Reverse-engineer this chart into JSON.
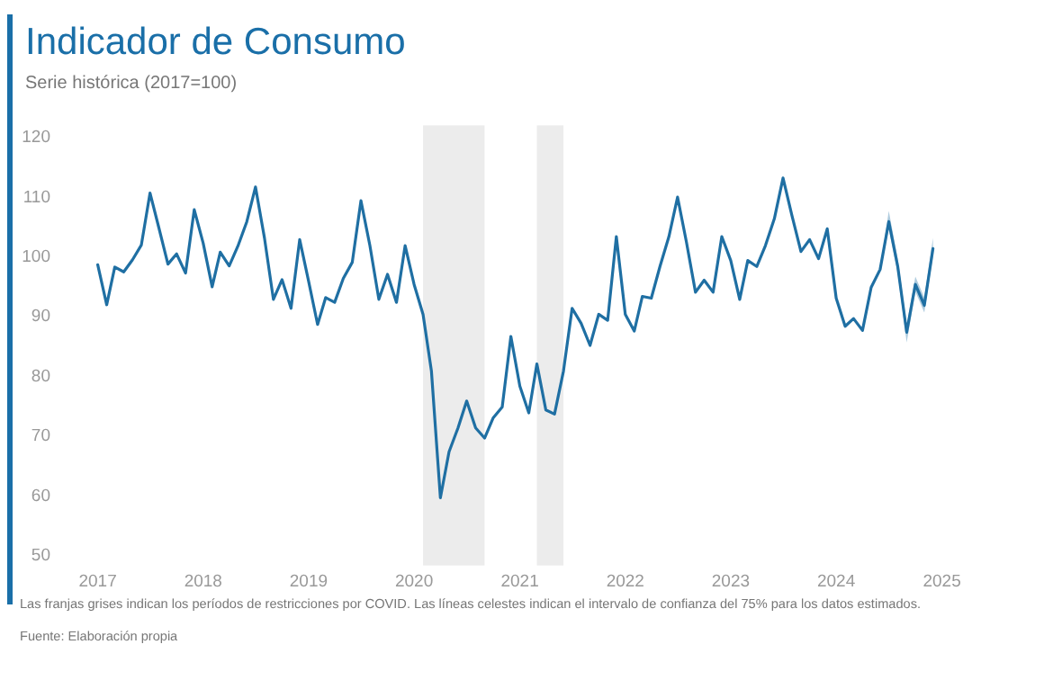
{
  "chart_data": {
    "type": "line",
    "title": "Indicador de Consumo",
    "subtitle": "Serie histórica (2017=100)",
    "annotations": [
      "Las franjas grises indican los períodos de restricciones por COVID. Las líneas celestes indican el intervalo de confianza del 75% para los datos estimados.",
      "Fuente: Elaboración propia"
    ],
    "x": [
      "2017-01",
      "2017-02",
      "2017-03",
      "2017-04",
      "2017-05",
      "2017-06",
      "2017-07",
      "2017-08",
      "2017-09",
      "2017-10",
      "2017-11",
      "2017-12",
      "2018-01",
      "2018-02",
      "2018-03",
      "2018-04",
      "2018-05",
      "2018-06",
      "2018-07",
      "2018-08",
      "2018-09",
      "2018-10",
      "2018-11",
      "2018-12",
      "2019-01",
      "2019-02",
      "2019-03",
      "2019-04",
      "2019-05",
      "2019-06",
      "2019-07",
      "2019-08",
      "2019-09",
      "2019-10",
      "2019-11",
      "2019-12",
      "2020-01",
      "2020-02",
      "2020-03",
      "2020-04",
      "2020-05",
      "2020-06",
      "2020-07",
      "2020-08",
      "2020-09",
      "2020-10",
      "2020-11",
      "2020-12",
      "2021-01",
      "2021-02",
      "2021-03",
      "2021-04",
      "2021-05",
      "2021-06",
      "2021-07",
      "2021-08",
      "2021-09",
      "2021-10",
      "2021-11",
      "2021-12",
      "2022-01",
      "2022-02",
      "2022-03",
      "2022-04",
      "2022-05",
      "2022-06",
      "2022-07",
      "2022-08",
      "2022-09",
      "2022-10",
      "2022-11",
      "2022-12",
      "2023-01",
      "2023-02",
      "2023-03",
      "2023-04",
      "2023-05",
      "2023-06",
      "2023-07",
      "2023-08",
      "2023-09",
      "2023-10",
      "2023-11",
      "2023-12",
      "2024-01",
      "2024-02",
      "2024-03",
      "2024-04",
      "2024-05",
      "2024-06",
      "2024-07",
      "2024-08",
      "2024-09",
      "2024-10",
      "2024-11",
      "2024-12"
    ],
    "series": [
      {
        "color": "#1f6fa3",
        "values": [
          98.5,
          91.8,
          98.1,
          97.3,
          99.3,
          101.8,
          110.5,
          104.6,
          98.6,
          100.3,
          97.1,
          107.7,
          102.1,
          94.8,
          100.6,
          98.3,
          101.6,
          105.7,
          111.5,
          103,
          92.7,
          96,
          91.2,
          102.7,
          95.7,
          88.5,
          93,
          92.2,
          96.2,
          98.9,
          109.2,
          101.7,
          92.7,
          96.9,
          92.2,
          101.7,
          95.2,
          90.2,
          80.7,
          59.5,
          67.2,
          71.2,
          75.7,
          71.2,
          69.5,
          72.9,
          74.7,
          86.5,
          78.2,
          73.7,
          81.9,
          74.2,
          73.5,
          80.7,
          91.2,
          88.7,
          85,
          90.2,
          89.2,
          103.2,
          90.2,
          87.4,
          93.2,
          92.9,
          98.2,
          103.2,
          109.8,
          102.2,
          93.9,
          95.9,
          93.9,
          103.2,
          99.2,
          92.7,
          99.2,
          98.2,
          101.7,
          106.2,
          113,
          106.7,
          100.7,
          102.7,
          99.5,
          104.5,
          92.9,
          88.2,
          89.5,
          87.5,
          94.7,
          97.7,
          105.7,
          98.2,
          87.2,
          95.2,
          91.7,
          101.2
        ],
        "lower": [
          null,
          null,
          null,
          null,
          null,
          null,
          null,
          null,
          null,
          null,
          null,
          null,
          null,
          null,
          null,
          null,
          null,
          null,
          null,
          null,
          null,
          null,
          null,
          null,
          null,
          null,
          null,
          null,
          null,
          null,
          null,
          null,
          null,
          null,
          null,
          null,
          null,
          null,
          null,
          null,
          null,
          null,
          null,
          null,
          null,
          null,
          null,
          null,
          null,
          null,
          null,
          null,
          null,
          null,
          null,
          null,
          null,
          null,
          null,
          null,
          null,
          null,
          null,
          null,
          null,
          null,
          null,
          null,
          null,
          null,
          null,
          null,
          null,
          null,
          null,
          null,
          null,
          null,
          null,
          null,
          null,
          null,
          null,
          null,
          null,
          null,
          null,
          null,
          null,
          97.7,
          104.5,
          97,
          85.5,
          94,
          90.5,
          100
        ],
        "upper": [
          null,
          null,
          null,
          null,
          null,
          null,
          null,
          null,
          null,
          null,
          null,
          null,
          null,
          null,
          null,
          null,
          null,
          null,
          null,
          null,
          null,
          null,
          null,
          null,
          null,
          null,
          null,
          null,
          null,
          null,
          null,
          null,
          null,
          null,
          null,
          null,
          null,
          null,
          null,
          null,
          null,
          null,
          null,
          null,
          null,
          null,
          null,
          null,
          null,
          null,
          null,
          null,
          null,
          null,
          null,
          null,
          null,
          null,
          null,
          null,
          null,
          null,
          null,
          null,
          null,
          null,
          null,
          null,
          null,
          null,
          null,
          null,
          null,
          null,
          null,
          null,
          null,
          null,
          null,
          null,
          null,
          null,
          null,
          null,
          null,
          null,
          null,
          null,
          null,
          97.7,
          107.5,
          99.5,
          88.5,
          96.5,
          93,
          103
        ]
      }
    ],
    "xlim": [
      "2017",
      "2025"
    ],
    "xticks": [
      {
        "value": "2017",
        "label": "2017"
      },
      {
        "value": "2018",
        "label": "2018"
      },
      {
        "value": "2019",
        "label": "2019"
      },
      {
        "value": "2020",
        "label": "2020"
      },
      {
        "value": "2021",
        "label": "2021"
      },
      {
        "value": "2022",
        "label": "2022"
      },
      {
        "value": "2023",
        "label": "2023"
      },
      {
        "value": "2024",
        "label": "2024"
      },
      {
        "value": "2025",
        "label": "2025"
      }
    ],
    "ylim": [
      50,
      120
    ],
    "yticks": [
      50,
      60,
      70,
      80,
      90,
      100,
      110,
      120
    ],
    "bands": [
      {
        "axis": "x",
        "from": "2020-02",
        "to": "2020-09",
        "color": "#ececec"
      },
      {
        "axis": "x",
        "from": "2021-03",
        "to": "2021-06",
        "color": "#ececec"
      }
    ]
  }
}
